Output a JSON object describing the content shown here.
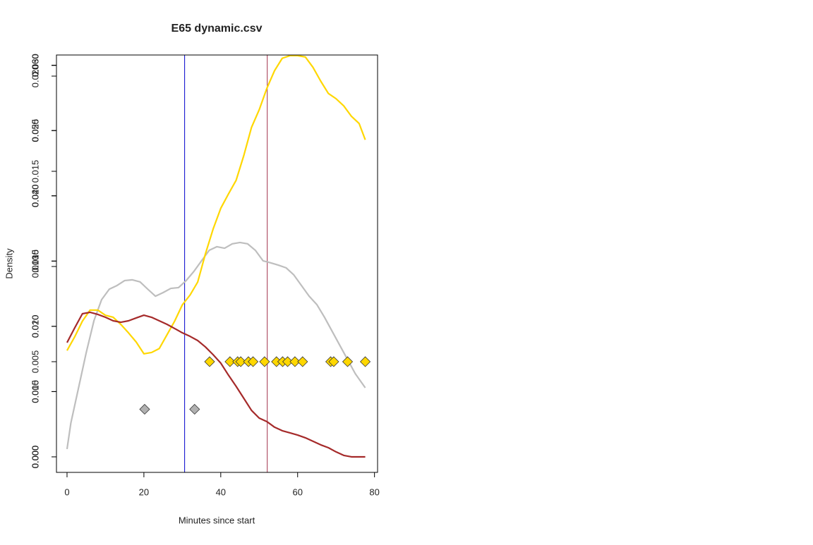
{
  "chart_data": {
    "type": "line",
    "title": "E65 dynamic.csv",
    "x_label": "Minutes since start",
    "y_label": "Density",
    "xlim": [
      -2.75,
      80.8
    ],
    "xticks": [
      0,
      20,
      40,
      60,
      80
    ],
    "ylim": [
      -0.00119,
      0.03078
    ],
    "yticks": [
      {
        "value": 0,
        "label": "0.000"
      },
      0.005,
      {
        "value": 0.01,
        "label": "0.010"
      },
      0.015,
      {
        "value": 0.02,
        "label": "0.020"
      },
      0.025,
      {
        "value": 0.03,
        "label": "0.030"
      }
    ],
    "y2lim": [
      -0.000815,
      0.02111
    ],
    "y2ticks": [
      {
        "value": 0,
        "label": "0.000"
      },
      0.005,
      {
        "value": 0.01,
        "label": "0.010"
      },
      0.015,
      {
        "value": 0.02,
        "label": "0.020"
      }
    ],
    "y3lim": [
      -0.00238,
      0.0616
    ],
    "y3ticks": [
      {
        "value": 0,
        "label": "0.000"
      },
      {
        "value": 0.01,
        "label": "0.010"
      },
      {
        "value": 0.02,
        "label": "0.020"
      },
      {
        "value": 0.03,
        "label": "0.030"
      },
      {
        "value": 0.04,
        "label": "0.040"
      },
      {
        "value": 0.05,
        "label": "0.050"
      },
      {
        "value": 0.06,
        "label": "0.060"
      }
    ],
    "vlines": [
      {
        "x": 30.6,
        "color": "#0000cd"
      },
      {
        "x": 52.1,
        "color": "#a0304a"
      }
    ],
    "series": [
      {
        "type": "line",
        "axis": "y2",
        "color": "#bebebe",
        "x": [
          0,
          1,
          3,
          5,
          7,
          9,
          11,
          13,
          15,
          17,
          19,
          21,
          23,
          25,
          27,
          29,
          31,
          33,
          35,
          37,
          39,
          41,
          43,
          45,
          47,
          49,
          51,
          53,
          55,
          57,
          59,
          61,
          63,
          65,
          67,
          69,
          71,
          73,
          75,
          77.6
        ],
        "values": [
          0.00041,
          0.00178,
          0.00363,
          0.00548,
          0.00715,
          0.00826,
          0.00881,
          0.009,
          0.00926,
          0.0093,
          0.00919,
          0.00881,
          0.00844,
          0.00863,
          0.00885,
          0.00889,
          0.00926,
          0.00974,
          0.0103,
          0.01085,
          0.01104,
          0.01096,
          0.01119,
          0.01126,
          0.01119,
          0.01085,
          0.0103,
          0.01019,
          0.01007,
          0.00993,
          0.00956,
          0.009,
          0.00844,
          0.008,
          0.00733,
          0.00659,
          0.00585,
          0.00511,
          0.00437,
          0.00363
        ]
      },
      {
        "type": "line",
        "axis": "y3",
        "color": "#ffd700",
        "x": [
          0,
          2,
          4,
          6,
          8,
          10,
          12,
          14,
          16,
          18,
          20,
          22,
          24,
          26,
          28,
          30,
          32,
          34,
          36,
          38,
          40,
          42,
          44,
          46,
          48,
          50,
          52,
          54,
          56,
          58,
          60,
          62,
          64,
          66,
          68,
          70,
          72,
          74,
          76,
          77.6
        ],
        "values": [
          0.0163,
          0.0184,
          0.0208,
          0.0225,
          0.0225,
          0.0217,
          0.0214,
          0.0203,
          0.019,
          0.0176,
          0.0158,
          0.016,
          0.0166,
          0.0187,
          0.0208,
          0.0233,
          0.0248,
          0.0268,
          0.0311,
          0.0349,
          0.0381,
          0.0403,
          0.0424,
          0.0462,
          0.0505,
          0.0532,
          0.0565,
          0.0592,
          0.0611,
          0.0615,
          0.0615,
          0.0613,
          0.0597,
          0.0576,
          0.0557,
          0.0549,
          0.0538,
          0.0522,
          0.0511,
          0.0486
        ]
      },
      {
        "type": "line",
        "axis": "y",
        "color": "#a52a2a",
        "x": [
          0,
          2,
          4,
          6,
          8,
          10,
          12,
          14,
          16,
          18,
          20,
          22,
          24,
          26,
          28,
          30,
          32,
          34,
          36,
          38,
          40,
          42,
          44,
          46,
          48,
          50,
          52,
          54,
          56,
          58,
          60,
          62,
          64,
          66,
          68,
          70,
          72,
          74,
          76,
          77.6
        ],
        "values": [
          0.00875,
          0.00988,
          0.01096,
          0.01107,
          0.01091,
          0.01069,
          0.01042,
          0.01031,
          0.01042,
          0.01064,
          0.01085,
          0.01069,
          0.01042,
          0.01015,
          0.00983,
          0.0095,
          0.00923,
          0.00891,
          0.00842,
          0.00783,
          0.00718,
          0.00626,
          0.0054,
          0.00448,
          0.00356,
          0.00297,
          0.0027,
          0.00227,
          0.002,
          0.00184,
          0.00167,
          0.00146,
          0.00119,
          0.00092,
          0.0007,
          0.00038,
          0.00011,
          0,
          0,
          0
        ]
      },
      {
        "type": "scatter",
        "axis": "y2",
        "color": "#ffd700",
        "x": [
          37.1,
          42.4,
          44.4,
          45.2,
          47.2,
          48.4,
          51.4,
          54.5,
          56.1,
          57.4,
          59.3,
          61.3,
          68.6,
          69.4,
          73.0,
          77.6
        ],
        "values": [
          0.005,
          0.005,
          0.005,
          0.005,
          0.005,
          0.005,
          0.005,
          0.005,
          0.005,
          0.005,
          0.005,
          0.005,
          0.005,
          0.005,
          0.005,
          0.005
        ]
      },
      {
        "type": "scatter",
        "axis": "y2",
        "color": "#b0b0b0",
        "x": [
          20.2,
          33.2
        ],
        "values": [
          0.0025,
          0.0025
        ]
      }
    ]
  }
}
